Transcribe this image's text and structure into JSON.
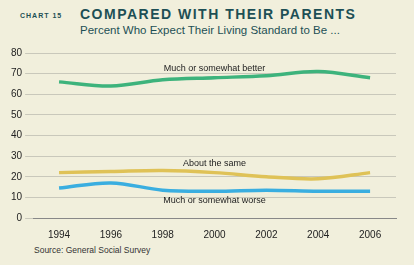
{
  "chart_data": {
    "type": "line",
    "chart_number": "CHART 15",
    "title": "COMPARED WITH THEIR PARENTS",
    "subtitle": "Percent Who Expect Their Living Standard to Be ...",
    "source": "Source: General Social Survey",
    "categories": [
      "1994",
      "1996",
      "1998",
      "2000",
      "2002",
      "2004",
      "2006"
    ],
    "series": [
      {
        "name": "Much or somewhat better",
        "color": "#3db37c",
        "values": [
          66,
          64,
          67,
          68,
          69,
          71,
          68
        ]
      },
      {
        "name": "About the same",
        "color": "#dfc257",
        "values": [
          22,
          22.5,
          23,
          22,
          20,
          19,
          22
        ]
      },
      {
        "name": "Much or somewhat worse",
        "color": "#3aaee0",
        "values": [
          14.5,
          17,
          13.5,
          13,
          13.5,
          13,
          13
        ]
      }
    ],
    "ylim": [
      0,
      80
    ],
    "yticks": [
      0,
      10,
      20,
      30,
      40,
      50,
      60,
      70,
      80
    ],
    "grid": true,
    "legend": "none"
  }
}
